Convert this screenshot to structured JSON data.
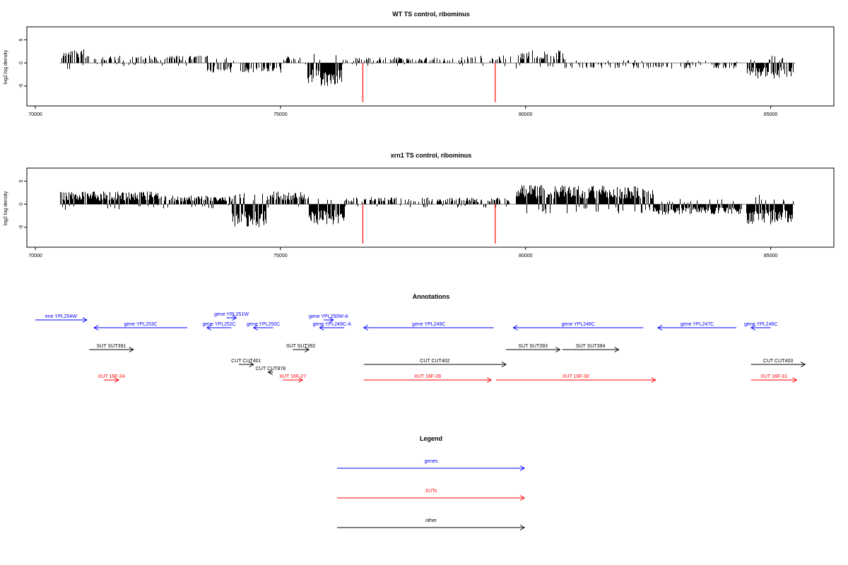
{
  "chart_data": [
    {
      "type": "bar",
      "title": "WT TS control, ribominus",
      "ylabel": "log2 log density",
      "xlim": [
        70000,
        86000
      ],
      "ylim": [
        -9,
        7.5
      ],
      "xticks": [
        70000,
        75000,
        80000,
        85000
      ],
      "yticks": [
        -5,
        0,
        5
      ],
      "baseline": [
        70500,
        85500
      ],
      "red_markers": [
        {
          "x": 76680,
          "y": -9
        },
        {
          "x": 79380,
          "y": -9
        }
      ],
      "regions": [
        {
          "start": 70500,
          "end": 71000,
          "level": 2.4,
          "density": 0.6
        },
        {
          "start": 71000,
          "end": 73500,
          "level": 1.3,
          "density": 0.4
        },
        {
          "start": 73500,
          "end": 75000,
          "level": -1.8,
          "density": 0.5
        },
        {
          "start": 75000,
          "end": 75500,
          "level": 1.2,
          "density": 0.3
        },
        {
          "start": 75550,
          "end": 76250,
          "level": -4.0,
          "density": 0.9
        },
        {
          "start": 76250,
          "end": 78800,
          "level": 1.0,
          "density": 0.4
        },
        {
          "start": 78800,
          "end": 79700,
          "level": 1.3,
          "density": 0.3
        },
        {
          "start": 79800,
          "end": 80800,
          "level": 2.2,
          "density": 0.6
        },
        {
          "start": 80800,
          "end": 84300,
          "level": -1.0,
          "density": 0.35
        },
        {
          "start": 84500,
          "end": 85450,
          "level": -2.7,
          "density": 0.9
        }
      ]
    },
    {
      "type": "bar",
      "title": "xrn1 TS control, ribominus",
      "ylabel": "log2 log density",
      "xlim": [
        70000,
        86000
      ],
      "ylim": [
        -9,
        7.5
      ],
      "xticks": [
        70000,
        75000,
        80000,
        85000
      ],
      "yticks": [
        -5,
        0,
        5
      ],
      "baseline": [
        70500,
        85500
      ],
      "red_markers": [
        {
          "x": 76680,
          "y": -9
        },
        {
          "x": 79380,
          "y": -9
        }
      ],
      "regions": [
        {
          "start": 70500,
          "end": 72500,
          "level": 2.2,
          "density": 0.9
        },
        {
          "start": 72500,
          "end": 74000,
          "level": 1.5,
          "density": 0.8
        },
        {
          "start": 74000,
          "end": 74700,
          "level": -4.0,
          "density": 0.95
        },
        {
          "start": 74700,
          "end": 75500,
          "level": 2.2,
          "density": 0.7
        },
        {
          "start": 75550,
          "end": 76300,
          "level": -3.5,
          "density": 0.95
        },
        {
          "start": 76300,
          "end": 79700,
          "level": 1.2,
          "density": 0.6
        },
        {
          "start": 79800,
          "end": 82600,
          "level": 3.3,
          "density": 0.95
        },
        {
          "start": 82600,
          "end": 84400,
          "level": -1.8,
          "density": 0.9
        },
        {
          "start": 84500,
          "end": 85450,
          "level": -3.5,
          "density": 0.95
        }
      ]
    }
  ],
  "annotations": {
    "title": "Annotations",
    "features": [
      {
        "label": "ene YPL254W",
        "color": "#0000ff",
        "start": 70000,
        "end": 71050,
        "dir": "right",
        "row": 0
      },
      {
        "label": "gene YPL251W",
        "color": "#0000ff",
        "start": 73900,
        "end": 74100,
        "dir": "right",
        "row": -1
      },
      {
        "label": "gene YPL250W-A",
        "color": "#0000ff",
        "start": 75880,
        "end": 76080,
        "dir": "right",
        "row": 0
      },
      {
        "label": "gene YPL253C",
        "color": "#0000ff",
        "start": 71200,
        "end": 73100,
        "dir": "left",
        "row": 1
      },
      {
        "label": "gene YPL252C",
        "color": "#0000ff",
        "start": 73500,
        "end": 74000,
        "dir": "left",
        "row": 1
      },
      {
        "label": "gene YPL250C",
        "color": "#0000ff",
        "start": 74450,
        "end": 74850,
        "dir": "left",
        "row": 1
      },
      {
        "label": "gene YPL249C-A",
        "color": "#0000ff",
        "start": 75800,
        "end": 76300,
        "dir": "left",
        "row": 1
      },
      {
        "label": "gene YPL249C",
        "color": "#0000ff",
        "start": 76700,
        "end": 79350,
        "dir": "left",
        "row": 1
      },
      {
        "label": "gene YPL248C",
        "color": "#0000ff",
        "start": 79750,
        "end": 82400,
        "dir": "left",
        "row": 1
      },
      {
        "label": "gene YPL247C",
        "color": "#0000ff",
        "start": 82700,
        "end": 84300,
        "dir": "left",
        "row": 1
      },
      {
        "label": "gene YPL246C",
        "color": "#0000ff",
        "start": 84600,
        "end": 85000,
        "dir": "left",
        "row": 1
      },
      {
        "label": "SUT SUT391",
        "color": "#000000",
        "start": 71100,
        "end": 72000,
        "dir": "right",
        "row": 2
      },
      {
        "label": "SUT SUT392",
        "color": "#000000",
        "start": 75250,
        "end": 75580,
        "dir": "right",
        "row": 2
      },
      {
        "label": "SUT SUT393",
        "color": "#000000",
        "start": 79600,
        "end": 80700,
        "dir": "right",
        "row": 2
      },
      {
        "label": "SUT SUT394",
        "color": "#000000",
        "start": 80750,
        "end": 81900,
        "dir": "right",
        "row": 2
      },
      {
        "label": "CUT CUT401",
        "color": "#000000",
        "start": 74150,
        "end": 74450,
        "dir": "right",
        "row": 3
      },
      {
        "label": "CUT CUT402",
        "color": "#000000",
        "start": 76700,
        "end": 79600,
        "dir": "right",
        "row": 3
      },
      {
        "label": "CUT CUT403",
        "color": "#000000",
        "start": 84600,
        "end": 85700,
        "dir": "right",
        "row": 3
      },
      {
        "label": "CUT CUT878",
        "color": "#000000",
        "start": 74750,
        "end": 74850,
        "dir": "left",
        "row": 4
      },
      {
        "label": "XUT 16F-24",
        "color": "#ff0000",
        "start": 71400,
        "end": 71700,
        "dir": "right",
        "row": 5
      },
      {
        "label": "XUT 16F-27",
        "color": "#ff0000",
        "start": 75050,
        "end": 75450,
        "dir": "right",
        "row": 5
      },
      {
        "label": "XUT 16F-28",
        "color": "#ff0000",
        "start": 76700,
        "end": 79300,
        "dir": "right",
        "row": 5
      },
      {
        "label": "XUT 16F-30",
        "color": "#ff0000",
        "start": 79400,
        "end": 82650,
        "dir": "right",
        "row": 5
      },
      {
        "label": "XUT 16F-31",
        "color": "#ff0000",
        "start": 84600,
        "end": 85530,
        "dir": "right",
        "row": 5
      }
    ]
  },
  "legend": {
    "title": "Legend",
    "items": [
      {
        "label": "genes",
        "color": "#0000ff"
      },
      {
        "label": "XUTs",
        "color": "#ff0000"
      },
      {
        "label": "other",
        "color": "#000000"
      }
    ]
  }
}
